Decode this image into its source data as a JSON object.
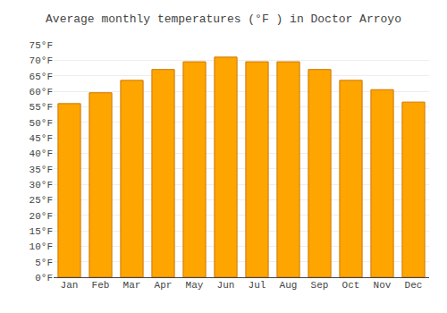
{
  "chart_data": {
    "type": "bar",
    "title": "Average monthly temperatures (°F ) in Doctor Arroyo",
    "categories": [
      "Jan",
      "Feb",
      "Mar",
      "Apr",
      "May",
      "Jun",
      "Jul",
      "Aug",
      "Sep",
      "Oct",
      "Nov",
      "Dec"
    ],
    "values": [
      56,
      59.5,
      63.5,
      67,
      69.5,
      71,
      69.5,
      69.5,
      67,
      63.5,
      60.5,
      56.5
    ],
    "color": "#FFA500",
    "ylim": [
      0,
      75
    ],
    "yticks": [
      {
        "value": 0,
        "label": "0°F"
      },
      {
        "value": 5,
        "label": "5°F"
      },
      {
        "value": 10,
        "label": "10°F"
      },
      {
        "value": 15,
        "label": "15°F"
      },
      {
        "value": 20,
        "label": "20°F"
      },
      {
        "value": 25,
        "label": "25°F"
      },
      {
        "value": 30,
        "label": "30°F"
      },
      {
        "value": 35,
        "label": "35°F"
      },
      {
        "value": 40,
        "label": "40°F"
      },
      {
        "value": 45,
        "label": "45°F"
      },
      {
        "value": 50,
        "label": "50°F"
      },
      {
        "value": 55,
        "label": "55°F"
      },
      {
        "value": 60,
        "label": "60°F"
      },
      {
        "value": 65,
        "label": "65°F"
      },
      {
        "value": 70,
        "label": "70°F"
      },
      {
        "value": 75,
        "label": "75°F"
      }
    ],
    "grid": true
  }
}
